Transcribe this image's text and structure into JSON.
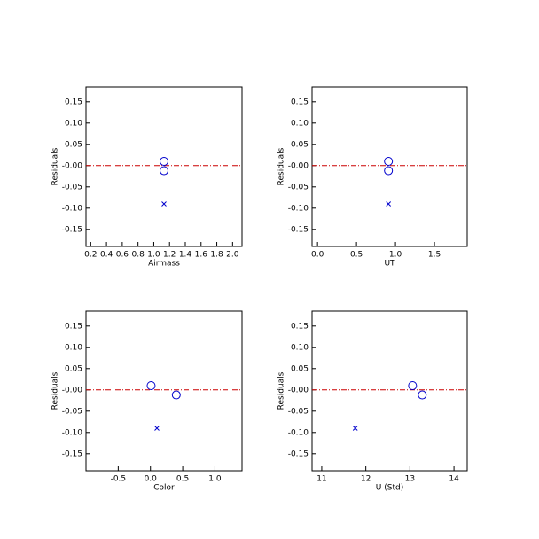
{
  "chart_data": [
    {
      "type": "scatter",
      "xlabel": "Airmass",
      "ylabel": "Residuals",
      "xlim": [
        0.14,
        2.12
      ],
      "ylim": [
        -0.19,
        0.185
      ],
      "xticks": [
        0.2,
        0.4,
        0.6,
        0.8,
        {
          "value": 1.0,
          "label": "1.0"
        },
        1.2,
        1.4,
        1.6,
        1.8,
        {
          "value": 2.0,
          "label": "2.0"
        }
      ],
      "yticks": [
        0.15,
        {
          "value": 0.1,
          "label": "0.10"
        },
        0.05,
        {
          "value": 0,
          "label": "-0.00"
        },
        -0.05,
        {
          "value": -0.1,
          "label": "-0.10"
        },
        -0.15
      ],
      "hline": 0,
      "hline_color": "#cc0000",
      "series": [
        {
          "marker": "circle",
          "color": "#0000cc",
          "x": [
            1.13,
            1.13
          ],
          "values": [
            0.01,
            -0.012
          ]
        },
        {
          "marker": "x",
          "color": "#0000cc",
          "x": [
            1.13
          ],
          "values": [
            -0.09
          ]
        }
      ]
    },
    {
      "type": "scatter",
      "xlabel": "UT",
      "ylabel": "Residuals",
      "xlim": [
        -0.07,
        1.92
      ],
      "ylim": [
        -0.19,
        0.185
      ],
      "xticks": [
        {
          "value": 0,
          "label": "0.0"
        },
        0.5,
        {
          "value": 1.0,
          "label": "1.0"
        },
        1.5
      ],
      "yticks": [
        0.15,
        {
          "value": 0.1,
          "label": "0.10"
        },
        0.05,
        {
          "value": 0,
          "label": "-0.00"
        },
        -0.05,
        {
          "value": -0.1,
          "label": "-0.10"
        },
        -0.15
      ],
      "hline": 0,
      "hline_color": "#cc0000",
      "series": [
        {
          "marker": "circle",
          "color": "#0000cc",
          "x": [
            0.91,
            0.91
          ],
          "values": [
            0.01,
            -0.012
          ]
        },
        {
          "marker": "x",
          "color": "#0000cc",
          "x": [
            0.91
          ],
          "values": [
            -0.09
          ]
        }
      ]
    },
    {
      "type": "scatter",
      "xlabel": "Color",
      "ylabel": "Residuals",
      "xlim": [
        -1.0,
        1.42
      ],
      "ylim": [
        -0.19,
        0.185
      ],
      "xticks": [
        -0.5,
        {
          "value": 0,
          "label": "0.0"
        },
        0.5,
        {
          "value": 1.0,
          "label": "1.0"
        }
      ],
      "yticks": [
        0.15,
        {
          "value": 0.1,
          "label": "0.10"
        },
        0.05,
        {
          "value": 0,
          "label": "-0.00"
        },
        -0.05,
        {
          "value": -0.1,
          "label": "-0.10"
        },
        -0.15
      ],
      "hline": 0,
      "hline_color": "#cc0000",
      "series": [
        {
          "marker": "circle",
          "color": "#0000cc",
          "x": [
            0.01,
            0.4
          ],
          "values": [
            0.01,
            -0.012
          ]
        },
        {
          "marker": "x",
          "color": "#0000cc",
          "x": [
            0.1
          ],
          "values": [
            -0.09
          ]
        }
      ]
    },
    {
      "type": "scatter",
      "xlabel": "U (Std)",
      "ylabel": "Residuals",
      "xlim": [
        10.78,
        14.3
      ],
      "ylim": [
        -0.19,
        0.185
      ],
      "xticks": [
        11,
        12,
        13,
        14
      ],
      "yticks": [
        0.15,
        {
          "value": 0.1,
          "label": "0.10"
        },
        0.05,
        {
          "value": 0,
          "label": "-0.00"
        },
        -0.05,
        {
          "value": -0.1,
          "label": "-0.10"
        },
        -0.15
      ],
      "hline": 0,
      "hline_color": "#cc0000",
      "series": [
        {
          "marker": "circle",
          "color": "#0000cc",
          "x": [
            13.06,
            13.28
          ],
          "values": [
            0.01,
            -0.012
          ]
        },
        {
          "marker": "x",
          "color": "#0000cc",
          "x": [
            11.76
          ],
          "values": [
            -0.09
          ]
        }
      ]
    }
  ]
}
